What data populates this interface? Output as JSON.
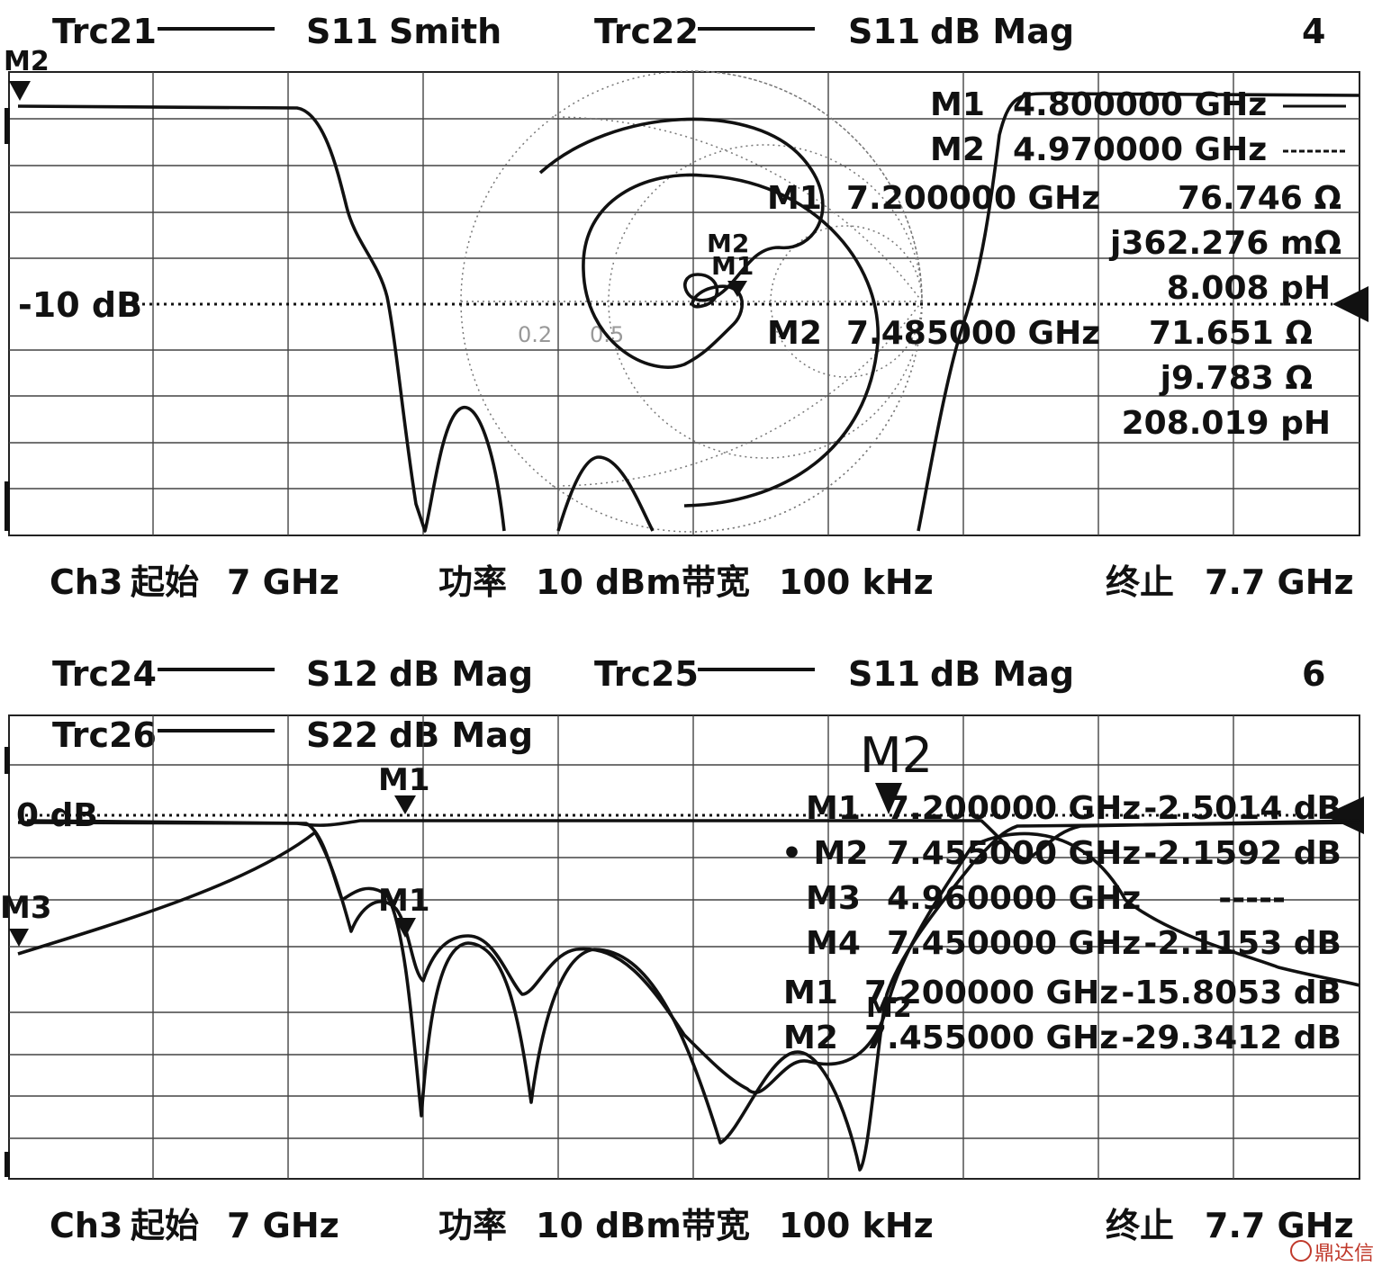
{
  "panel1": {
    "traces": [
      {
        "name": "Trc21",
        "param": "S11",
        "format": "Smith"
      },
      {
        "name": "Trc22",
        "param": "S11",
        "format": "dB Mag"
      }
    ],
    "window_number": "4",
    "ref_label": "-10 dB",
    "top_marker": "M2",
    "marker_table": [
      {
        "name": "M1",
        "freq": "4.800000 GHz",
        "value": ""
      },
      {
        "name": "M2",
        "freq": "4.970000 GHz",
        "value": ""
      },
      {
        "name": "M1",
        "freq": "7.200000 GHz",
        "value": "76.746 Ω"
      },
      {
        "name": "",
        "freq": "",
        "value": "j362.276 mΩ"
      },
      {
        "name": "",
        "freq": "",
        "value": "8.008 pH"
      },
      {
        "name": "M2",
        "freq": "7.485000 GHz",
        "value": "71.651 Ω"
      },
      {
        "name": "",
        "freq": "",
        "value": "j9.783 Ω"
      },
      {
        "name": "",
        "freq": "",
        "value": "208.019 pH"
      }
    ],
    "smith_labels": [
      "0.2",
      "0.5"
    ],
    "smith_markers": [
      "M2",
      "M1"
    ],
    "footer": {
      "channel": "Ch3",
      "start_label": "起始",
      "start": "7 GHz",
      "power_label": "功率",
      "power": "10 dBm",
      "bw_label": "带宽",
      "bw": "100 kHz",
      "stop_label": "终止",
      "stop": "7.7 GHz"
    }
  },
  "panel2": {
    "traces": [
      {
        "name": "Trc24",
        "param": "S12",
        "format": "dB Mag"
      },
      {
        "name": "Trc25",
        "param": "S11",
        "format": "dB Mag"
      },
      {
        "name": "Trc26",
        "param": "S22",
        "format": "dB Mag"
      }
    ],
    "window_number": "6",
    "ref_label": "0 dB",
    "left_marker": "M3",
    "big_marker": "M2",
    "trace_markers": [
      "M1",
      "M1",
      "M2"
    ],
    "marker_table": [
      {
        "name": "M1",
        "freq": "7.200000 GHz",
        "value": "-2.5014 dB"
      },
      {
        "name": "• M2",
        "freq": "7.455000 GHz",
        "value": "-2.1592 dB"
      },
      {
        "name": "M3",
        "freq": "4.960000 GHz",
        "value": "-----"
      },
      {
        "name": "M4",
        "freq": "7.450000 GHz",
        "value": "-2.1153 dB"
      },
      {
        "name": "M1",
        "freq": "7.200000 GHz",
        "value": "-15.8053 dB"
      },
      {
        "name": "M2",
        "freq": "7.455000 GHz",
        "value": "-29.3412 dB"
      }
    ],
    "footer": {
      "channel": "Ch3",
      "start_label": "起始",
      "start": "7 GHz",
      "power_label": "功率",
      "power": "10 dBm",
      "bw_label": "带宽",
      "bw": "100 kHz",
      "stop_label": "终止",
      "stop": "7.7 GHz"
    }
  },
  "watermark": "鼎达信",
  "chart_data": [
    {
      "type": "line",
      "x": [
        7.0,
        7.07,
        7.14,
        7.2,
        7.28,
        7.35,
        7.42,
        7.49,
        7.56,
        7.63,
        7.7
      ],
      "series": [
        {
          "name": "Trc22",
          "values": [
            0,
            0,
            0,
            -2,
            -16,
            -28,
            -24,
            -36,
            -10,
            0,
            0
          ]
        }
      ],
      "xlim": [
        7.0,
        7.7
      ],
      "ref_level": -10
    },
    {
      "type": "line",
      "x": [
        7.0,
        7.07,
        7.14,
        7.2,
        7.28,
        7.35,
        7.42,
        7.49,
        7.56,
        7.63,
        7.7
      ],
      "series": [
        {
          "name": "Trc24",
          "values": [
            -3,
            0,
            0,
            0,
            0,
            0,
            0,
            -2,
            0,
            0,
            0
          ]
        },
        {
          "name": "Trc25",
          "values": [
            -20,
            -14,
            -4,
            -16,
            -22,
            -18,
            -34,
            -28,
            -3,
            -5,
            -20
          ]
        },
        {
          "name": "Trc26",
          "values": [
            0,
            0,
            0,
            -15,
            -20,
            -18,
            -26,
            -30,
            -2,
            0,
            0
          ]
        }
      ],
      "xlim": [
        7.0,
        7.7
      ],
      "ref_level": 0
    }
  ]
}
